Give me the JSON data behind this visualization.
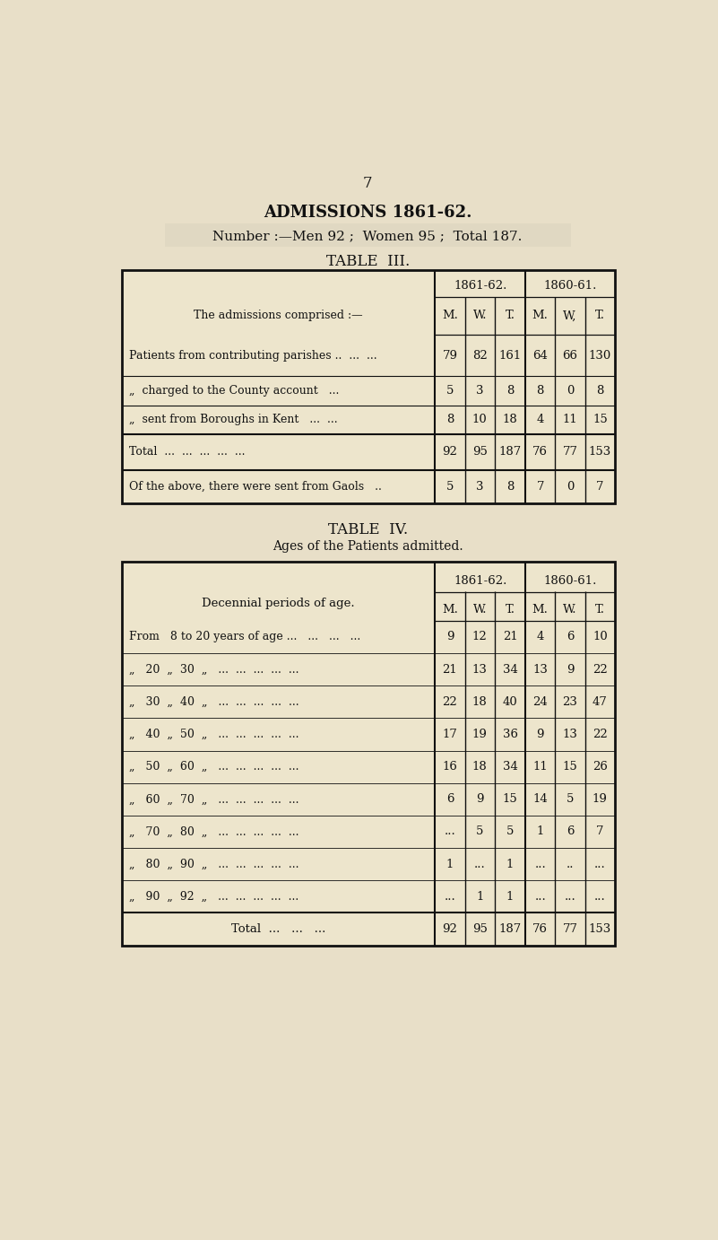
{
  "page_number": "7",
  "title": "ADMISSIONS 1861-62.",
  "subtitle": "Number :—Men 92 ;  Women 95 ;  Total 187.",
  "table3_title": "TABLE  III.",
  "table3_year1": "1861-62.",
  "table3_year2": "1860-61.",
  "table3_subheaders": [
    "M.",
    "W.",
    "T.",
    "M.",
    "W,",
    "T."
  ],
  "table3_header_col": "The admissions comprised :—",
  "table3_rows": [
    [
      "Patients from contributing parishes ..  ...  ...",
      "79",
      "82",
      "161",
      "64",
      "66",
      "130"
    ],
    [
      "„  charged to the County account   ...",
      "5",
      "3",
      "8",
      "8",
      "0",
      "8"
    ],
    [
      "„  sent from Boroughs in Kent   ...  ...",
      "8",
      "10",
      "18",
      "4",
      "11",
      "15"
    ],
    [
      "Total  ...  ...  ...  ...  ...",
      "92",
      "95",
      "187",
      "76",
      "77",
      "153"
    ],
    [
      "Of the above, there were sent from Gaols   ..",
      "5",
      "3",
      "8",
      "7",
      "0",
      "7"
    ]
  ],
  "table4_title": "TABLE  IV.",
  "table4_subtitle": "Ages of the Patients admitted.",
  "table4_header_col": "Decennial periods of age.",
  "table4_year1": "1861-62.",
  "table4_year2": "1860-61.",
  "table4_subheaders": [
    "M.",
    "W.",
    "T.",
    "M.",
    "W.",
    "T."
  ],
  "table4_rows": [
    [
      "From   8 to 20 years of age ...   ...   ...   ...",
      "9",
      "12",
      "21",
      "4",
      "6",
      "10"
    ],
    [
      "„   20  „  30  „   ...  ...  ...  ...  ...",
      "21",
      "13",
      "34",
      "13",
      "9",
      "22"
    ],
    [
      "„   30  „  40  „   ...  ...  ...  ...  ...",
      "22",
      "18",
      "40",
      "24",
      "23",
      "47"
    ],
    [
      "„   40  „  50  „   ...  ...  ...  ...  ...",
      "17",
      "19",
      "36",
      "9",
      "13",
      "22"
    ],
    [
      "„   50  „  60  „   ...  ...  ...  ...  ...",
      "16",
      "18",
      "34",
      "11",
      "15",
      "26"
    ],
    [
      "„   60  „  70  „   ...  ...  ...  ...  ...",
      "6",
      "9",
      "15",
      "14",
      "5",
      "19"
    ],
    [
      "„   70  „  80  „   ...  ...  ...  ...  ...",
      "...",
      "5",
      "5",
      "1",
      "6",
      "7"
    ],
    [
      "„   80  „  90  „   ...  ...  ...  ...  ...",
      "1",
      "...",
      "1",
      "...",
      "..",
      "..."
    ],
    [
      "„   90  „  92  „   ...  ...  ...  ...  ...",
      "...",
      "1",
      "1",
      "...",
      "...",
      "..."
    ],
    [
      "Total  ...   ...   ...",
      "92",
      "95",
      "187",
      "76",
      "77",
      "153"
    ]
  ],
  "bg_color": "#e8dfc8",
  "text_color": "#111111",
  "table_bg": "#ede5cc",
  "line_color": "#111111",
  "subtitle_bg": "#e0d8c2"
}
